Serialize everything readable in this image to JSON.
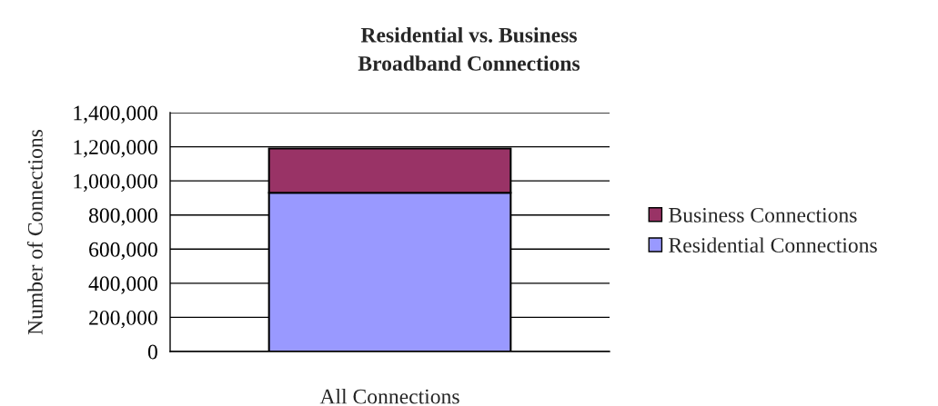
{
  "chart_data": {
    "type": "bar",
    "title": "Residential vs. Business\nBroadband Connections",
    "ylabel": "Number of Connections",
    "xlabel": "All Connections",
    "categories": [
      null
    ],
    "stacked": true,
    "series": [
      {
        "name": "Residential Connections",
        "color": "#9999ff",
        "values": [
          930000
        ]
      },
      {
        "name": "Business Connections",
        "color": "#993366",
        "values": [
          260000
        ]
      }
    ],
    "ylim": [
      0,
      1400000
    ],
    "yticks": [
      {
        "value": 0,
        "label": "0"
      },
      {
        "value": 200000,
        "label": "200,000"
      },
      {
        "value": 400000,
        "label": "400,000"
      },
      {
        "value": 600000,
        "label": "600,000"
      },
      {
        "value": 800000,
        "label": "800,000"
      },
      {
        "value": 1000000,
        "label": "1,000,000"
      },
      {
        "value": 1200000,
        "label": "1,200,000"
      },
      {
        "value": 1400000,
        "label": "1,400,000"
      }
    ],
    "grid": "y",
    "legend": "right"
  }
}
